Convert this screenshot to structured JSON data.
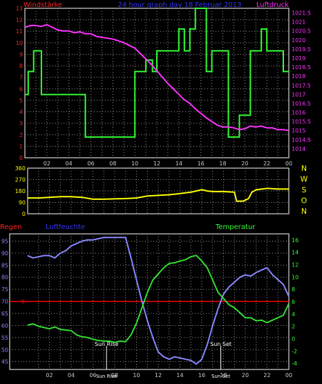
{
  "colors": {
    "background": "#000000",
    "plot_bg": "#000000",
    "frame": "#ffffff",
    "grid": "#9a9a9a",
    "wind_speed": "#33ff33",
    "pressure": "#ff33ff",
    "wind_direction": "#ffff00",
    "humidity": "#8888ff",
    "temperature": "#33dd33",
    "rain": "#ff0000",
    "label_red": "#ff2222",
    "label_blue": "#3333ff",
    "label_magenta": "#ff33ff",
    "label_yellow": "#ffff00",
    "label_green": "#33ff33",
    "axis_text": "#cccccc"
  },
  "chart_data": [
    {
      "type": "line",
      "title": "24 hour graph day 18 Februar 2013",
      "left_label": "Windstärke",
      "right_label": "Luftdruck",
      "x_ticks": [
        "02",
        "04",
        "06",
        "08",
        "10",
        "12",
        "14",
        "16",
        "18",
        "20",
        "22",
        "00"
      ],
      "xlim": [
        0,
        24
      ],
      "ylim_left": [
        0,
        13
      ],
      "y_ticks_left": [
        "0",
        "1",
        "2",
        "3",
        "4",
        "5",
        "6",
        "7",
        "8",
        "9",
        "10",
        "11",
        "12",
        "13"
      ],
      "ylim_right": [
        1013.5,
        1021.75
      ],
      "y_ticks_right": [
        "1014",
        "1014.5",
        "1015",
        "1015.5",
        "1016",
        "1016.5",
        "1017",
        "1017.5",
        "1018",
        "1018.5",
        "1019",
        "1019.5",
        "1020",
        "1020.5",
        "1021",
        "1021.5"
      ],
      "series": [
        {
          "name": "Windstärke",
          "axis": "left",
          "step": true,
          "x": [
            0.0,
            0.3,
            0.8,
            1.5,
            2.0,
            5.5,
            10.0,
            11.0,
            11.6,
            12.0,
            14.0,
            14.5,
            15.0,
            15.5,
            16.0,
            16.5,
            17.0,
            18.5,
            19.5,
            20.5,
            21.5,
            22.0,
            23.5,
            24.0
          ],
          "y": [
            5.5,
            7.5,
            9.3,
            5.5,
            5.5,
            1.8,
            7.5,
            8.5,
            7.5,
            9.3,
            11.2,
            9.3,
            11.2,
            13.0,
            13.0,
            7.5,
            9.3,
            1.8,
            3.7,
            9.3,
            11.2,
            9.3,
            7.5,
            7.5
          ]
        },
        {
          "name": "Luftdruck",
          "axis": "right",
          "step": false,
          "x": [
            0.0,
            0.5,
            1.0,
            1.5,
            2.0,
            2.5,
            3.0,
            3.5,
            4.0,
            4.5,
            5.0,
            5.5,
            6.0,
            6.5,
            7.0,
            7.5,
            8.0,
            8.5,
            9.0,
            9.5,
            10.0,
            10.5,
            11.0,
            11.5,
            12.0,
            12.5,
            13.0,
            13.5,
            14.0,
            14.5,
            15.0,
            15.5,
            16.0,
            16.5,
            17.0,
            17.5,
            18.0,
            18.5,
            19.0,
            19.5,
            20.0,
            20.5,
            21.0,
            21.5,
            22.0,
            22.5,
            23.0,
            23.5,
            24.0
          ],
          "y": [
            1020.7,
            1020.8,
            1020.8,
            1020.75,
            1020.85,
            1020.7,
            1020.55,
            1020.5,
            1020.5,
            1020.4,
            1020.45,
            1020.35,
            1020.35,
            1020.2,
            1020.15,
            1020.1,
            1020.05,
            1019.95,
            1019.85,
            1019.7,
            1019.55,
            1019.25,
            1018.95,
            1018.65,
            1018.3,
            1017.95,
            1017.6,
            1017.3,
            1017.0,
            1016.7,
            1016.5,
            1016.2,
            1015.95,
            1015.7,
            1015.5,
            1015.3,
            1015.2,
            1015.2,
            1015.15,
            1015.05,
            1015.1,
            1015.25,
            1015.2,
            1015.25,
            1015.15,
            1015.15,
            1015.05,
            1015.05,
            1015.0
          ]
        }
      ]
    },
    {
      "type": "line",
      "ylim": [
        0,
        360
      ],
      "y_ticks": [
        "0",
        "90",
        "180",
        "270",
        "360"
      ],
      "right_labels": [
        "N",
        "W",
        "S",
        "O",
        "N"
      ],
      "xlim": [
        0,
        24
      ],
      "series": [
        {
          "name": "Windrichtung",
          "x": [
            0.0,
            1.0,
            2.0,
            3.0,
            4.0,
            5.0,
            6.0,
            7.0,
            8.0,
            9.0,
            10.0,
            11.0,
            12.0,
            13.0,
            14.0,
            15.0,
            15.5,
            16.0,
            16.5,
            17.0,
            18.0,
            19.0,
            19.2,
            19.8,
            20.3,
            20.6,
            21.0,
            22.0,
            23.0,
            24.0
          ],
          "y": [
            125,
            125,
            130,
            135,
            135,
            130,
            115,
            115,
            118,
            120,
            125,
            140,
            145,
            150,
            160,
            170,
            180,
            190,
            180,
            175,
            175,
            170,
            100,
            100,
            120,
            170,
            190,
            200,
            195,
            195
          ]
        }
      ]
    },
    {
      "type": "line",
      "left_label": "Regen",
      "mid_label": "Luftfeuchte",
      "right_label": "Temperatur",
      "x_ticks": [
        "02",
        "04",
        "06",
        "08",
        "10",
        "12",
        "14",
        "16",
        "18",
        "20",
        "22",
        "00"
      ],
      "xlim": [
        0,
        24
      ],
      "ylim_humidity": [
        41.75,
        98
      ],
      "y_ticks_humidity": [
        "45",
        "50",
        "55",
        "60",
        "65",
        "70",
        "75",
        "80",
        "85",
        "90",
        "95"
      ],
      "rain_value": 0,
      "rain_tick": "0",
      "ylim_temperature": [
        -5,
        17
      ],
      "y_ticks_temperature": [
        "-4",
        "-2",
        "0",
        "2",
        "4",
        "6",
        "8",
        "10",
        "12",
        "14",
        "16"
      ],
      "annotations": [
        {
          "label": "Sun Rise",
          "x": 7.25
        },
        {
          "label": "Sun Set",
          "x": 17.75
        }
      ],
      "series": [
        {
          "name": "Luftfeuchte",
          "axis": "humidity",
          "x": [
            0.0,
            0.5,
            1.0,
            1.5,
            2.0,
            2.5,
            3.0,
            3.5,
            4.0,
            4.5,
            5.0,
            5.5,
            6.0,
            6.5,
            7.0,
            7.5,
            8.0,
            8.5,
            9.0,
            9.5,
            10.0,
            10.5,
            11.0,
            11.5,
            12.0,
            12.5,
            13.0,
            13.5,
            14.0,
            14.5,
            15.0,
            15.5,
            16.0,
            16.5,
            17.0,
            17.5,
            18.0,
            18.5,
            19.0,
            19.5,
            20.0,
            20.5,
            21.0,
            21.5,
            22.0,
            22.5,
            23.0,
            23.5,
            24.0
          ],
          "y": [
            89,
            88,
            88.5,
            89,
            89,
            88,
            90,
            91,
            93,
            94,
            95,
            95.5,
            95.5,
            96,
            96.5,
            96.5,
            96.5,
            96.5,
            96.5,
            88,
            79,
            70,
            62,
            55,
            49,
            47,
            46,
            47,
            46.5,
            46,
            45.5,
            44,
            46,
            52,
            60,
            67,
            73,
            76,
            78,
            80,
            81,
            80.5,
            82,
            83,
            84,
            81,
            79,
            77,
            72
          ]
        },
        {
          "name": "Temperatur",
          "axis": "temperature",
          "x": [
            0.0,
            0.5,
            1.0,
            1.5,
            2.0,
            2.5,
            3.0,
            3.5,
            4.0,
            4.5,
            5.0,
            5.5,
            6.0,
            6.5,
            7.0,
            7.5,
            8.0,
            8.5,
            9.0,
            9.5,
            10.0,
            10.5,
            11.0,
            11.5,
            12.0,
            12.5,
            13.0,
            13.5,
            14.0,
            14.5,
            15.0,
            15.5,
            16.0,
            16.5,
            17.0,
            17.5,
            18.0,
            18.5,
            19.0,
            19.5,
            20.0,
            20.5,
            21.0,
            21.5,
            22.0,
            22.5,
            23.0,
            23.5,
            24.0
          ],
          "y": [
            2.2,
            2.4,
            2.0,
            1.8,
            1.6,
            1.9,
            1.5,
            1.4,
            1.3,
            0.6,
            0.3,
            0.2,
            -0.1,
            -0.3,
            -0.4,
            -0.4,
            -0.6,
            -0.4,
            -0.5,
            0.6,
            2.5,
            5.0,
            7.5,
            9.5,
            10.5,
            11.5,
            12.2,
            12.3,
            12.6,
            12.8,
            13.3,
            13.5,
            12.6,
            11.5,
            9.5,
            7.5,
            6.5,
            5.5,
            5.0,
            4.2,
            3.4,
            3.4,
            2.9,
            3.0,
            2.6,
            3.0,
            3.4,
            3.8,
            5.7
          ]
        }
      ]
    }
  ]
}
